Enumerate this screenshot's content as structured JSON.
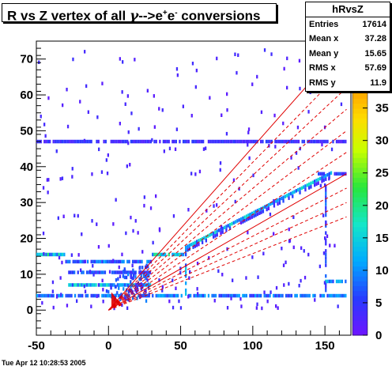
{
  "title": {
    "prefix": "R vs Z vertex of all ",
    "gamma": "γ",
    "arrow": "-->e",
    "sup1": "+",
    "e": "e",
    "sup2": "-",
    "suffix": " conversions"
  },
  "stats": {
    "name": "hRvsZ",
    "rows": [
      {
        "label": "Entries",
        "value": "17614"
      },
      {
        "label": "Mean x",
        "value": "37.28"
      },
      {
        "label": "Mean y",
        "value": "15.65"
      },
      {
        "label": "RMS x",
        "value": "57.69"
      },
      {
        "label": "RMS y",
        "value": "11.9"
      }
    ]
  },
  "timestamp": "Tue Apr 12 10:28:53 2005",
  "chart_data": {
    "type": "heatmap",
    "title": "R vs Z vertex of all γ-->e+e- conversions",
    "xlabel": "",
    "ylabel": "",
    "xlim": [
      -50,
      168
    ],
    "ylim": [
      -7,
      75
    ],
    "xticks": [
      -50,
      0,
      50,
      100,
      150
    ],
    "yticks": [
      0,
      10,
      20,
      30,
      40,
      50,
      60,
      70
    ],
    "zlim": [
      0,
      38
    ],
    "zticks": [
      0,
      5,
      10,
      15,
      20,
      25,
      30,
      35
    ],
    "entries": 17614,
    "mean_x": 37.28,
    "mean_y": 15.65,
    "rms_x": 57.69,
    "rms_y": 11.9,
    "colors": {
      "low": "#6a1aff",
      "mid": "#18e6c2",
      "high": "#ffb200",
      "rays": "#e00000"
    },
    "structures": [
      {
        "kind": "hband",
        "x": [
          -50,
          165
        ],
        "y": 4,
        "z": 8
      },
      {
        "kind": "hband",
        "x": [
          -50,
          165
        ],
        "y": 47,
        "z": 4
      },
      {
        "kind": "hband",
        "x": [
          -28,
          30
        ],
        "y": 7,
        "z": 12
      },
      {
        "kind": "hband",
        "x": [
          -28,
          30
        ],
        "y": 10.5,
        "z": 6
      },
      {
        "kind": "hband",
        "x": [
          -30,
          30
        ],
        "y": 13.5,
        "z": 8
      },
      {
        "kind": "hband",
        "x": [
          -50,
          -30
        ],
        "y": 15.5,
        "z": 14
      },
      {
        "kind": "hband",
        "x": [
          30,
          52
        ],
        "y": 15.5,
        "z": 14
      },
      {
        "kind": "vband",
        "x": 53,
        "y": [
          4,
          17
        ],
        "z": 10
      },
      {
        "kind": "vband",
        "x": 150,
        "y": [
          5,
          38
        ],
        "z": 6
      },
      {
        "kind": "diag",
        "from": [
          53,
          17
        ],
        "to": [
          155,
          38
        ],
        "z": 12
      },
      {
        "kind": "hband",
        "x": [
          150,
          165
        ],
        "y": 8,
        "z": 10
      },
      {
        "kind": "hband",
        "x": [
          145,
          165
        ],
        "y": 38,
        "z": 5
      }
    ]
  }
}
